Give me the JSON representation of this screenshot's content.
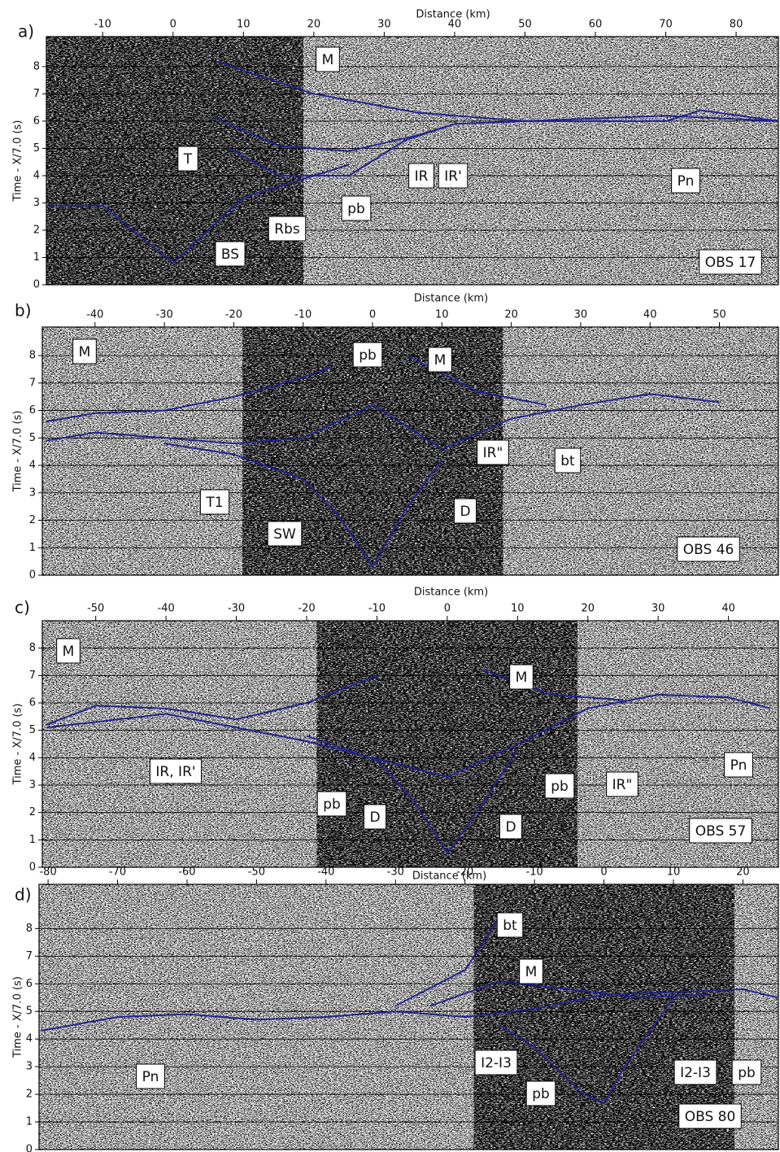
{
  "chart_data": [
    {
      "type": "seismic",
      "label": "a)",
      "x_label": "Distance (km)",
      "y_label": "Time - X/7.0 (s)",
      "xlim": [
        -18,
        86
      ],
      "xticks": [
        -10,
        0,
        10,
        20,
        30,
        40,
        50,
        60,
        70,
        80
      ],
      "ylim": [
        0,
        9.1
      ],
      "yticks": [
        0,
        1,
        2,
        3,
        4,
        5,
        6,
        7,
        8
      ],
      "grid": true,
      "line_color": "#23238c",
      "picks": [
        {
          "x": [
            6,
            20,
            35,
            50,
            70,
            86
          ],
          "values": [
            8.2,
            7.0,
            6.3,
            6.0,
            6.2,
            6.0
          ]
        },
        {
          "x": [
            6,
            15,
            25,
            35,
            40
          ],
          "values": [
            6.1,
            5.1,
            4.9,
            5.5,
            5.9
          ]
        },
        {
          "x": [
            -18,
            -10,
            0,
            10,
            20,
            25
          ],
          "values": [
            2.9,
            2.9,
            0.8,
            3.2,
            4.0,
            4.4
          ]
        },
        {
          "x": [
            8,
            15,
            25,
            33,
            40,
            50,
            60,
            70,
            75,
            86
          ],
          "values": [
            5,
            4.0,
            4.0,
            5.3,
            5.9,
            6.0,
            6.0,
            6.0,
            6.4,
            6.0
          ]
        }
      ],
      "annotations": [
        "M",
        "T",
        "pb",
        "Rbs",
        "BS",
        "IR",
        "IR'",
        "Pn",
        "OBS 17"
      ]
    },
    {
      "type": "seismic",
      "label": "b)",
      "x_label": "Distance (km)",
      "y_label": "Time - X/7.0 (s)",
      "xlim": [
        -47.6,
        58.5
      ],
      "xticks": [
        -40,
        -30,
        -20,
        -10,
        0,
        10,
        20,
        30,
        40,
        50
      ],
      "ylim": [
        0,
        9.04
      ],
      "yticks": [
        0,
        1,
        2,
        3,
        4,
        5,
        6,
        7,
        8
      ],
      "grid": true,
      "line_color": "#23238c",
      "picks": [
        {
          "x": [
            -47,
            -40,
            -30,
            -20,
            -10,
            -6
          ],
          "values": [
            5.6,
            5.9,
            6.0,
            6.5,
            7.2,
            7.6
          ]
        },
        {
          "x": [
            -47,
            -40,
            -30,
            -20,
            -10,
            0,
            10,
            20,
            30,
            40,
            50
          ],
          "values": [
            4.9,
            5.2,
            5.0,
            4.8,
            5.0,
            6.2,
            4.6,
            5.7,
            6.2,
            6.6,
            6.3
          ]
        },
        {
          "x": [
            -30,
            -20,
            -10,
            -5,
            0,
            5,
            10
          ],
          "values": [
            4.8,
            4.4,
            3.5,
            2.2,
            0.3,
            2.5,
            4.2
          ]
        },
        {
          "x": [
            5,
            15,
            25
          ],
          "values": [
            8.0,
            6.7,
            6.2
          ]
        }
      ],
      "annotations": [
        "M",
        "pb",
        "M",
        "bt",
        "IR\"",
        "T1",
        "SW",
        "D",
        "OBS 46"
      ]
    },
    {
      "type": "seismic",
      "label": "c)",
      "x_label": "Distance (km)",
      "y_label": "Time - X/7.0 (s)",
      "xlim": [
        -57.6,
        47.1
      ],
      "xticks": [
        -50,
        -40,
        -30,
        -20,
        -10,
        0,
        10,
        20,
        30,
        40
      ],
      "ylim": [
        0,
        9.0
      ],
      "yticks": [
        0,
        1,
        2,
        3,
        4,
        5,
        6,
        7,
        8
      ],
      "grid": true,
      "line_color": "#23238c",
      "picks": [
        {
          "x": [
            -57,
            -50,
            -40,
            -30,
            -20,
            -10
          ],
          "values": [
            5.2,
            5.9,
            5.8,
            5.4,
            6.0,
            7.0
          ]
        },
        {
          "x": [
            -57,
            -40,
            -20,
            0,
            10,
            20,
            30,
            40,
            46
          ],
          "values": [
            5.1,
            5.6,
            4.6,
            3.3,
            4.5,
            5.8,
            6.3,
            6.2,
            5.8
          ]
        },
        {
          "x": [
            -20,
            -10,
            -5,
            0,
            5,
            10
          ],
          "values": [
            4.8,
            3.9,
            2.5,
            0.5,
            2.3,
            4.3
          ]
        },
        {
          "x": [
            5,
            15,
            25
          ],
          "values": [
            7.2,
            6.3,
            6.1
          ]
        }
      ],
      "annotations": [
        "M",
        "M",
        "IR, IR'",
        "pb",
        "D",
        "pb",
        "IR\"",
        "Pn",
        "D",
        "OBS 57"
      ]
    },
    {
      "type": "seismic",
      "label": "d)",
      "x_label": "Distance (km)",
      "y_label": "Time - X/7.0 (s)",
      "xlim": [
        -81.3,
        25.1
      ],
      "xticks": [
        -80,
        -70,
        -60,
        -50,
        -40,
        -30,
        -20,
        -10,
        0,
        10,
        20
      ],
      "ylim": [
        0,
        9.6
      ],
      "yticks": [
        0,
        1,
        2,
        3,
        4,
        5,
        6,
        7,
        8
      ],
      "grid": true,
      "line_color": "#23238c",
      "picks": [
        {
          "x": [
            -81,
            -70,
            -60,
            -50,
            -40,
            -30,
            -20,
            -10,
            0,
            10,
            20,
            25
          ],
          "values": [
            4.3,
            4.8,
            4.9,
            4.7,
            4.8,
            5.0,
            4.8,
            5.1,
            5.6,
            5.7,
            5.8,
            5.5
          ]
        },
        {
          "x": [
            -30,
            -20,
            -15
          ],
          "values": [
            5.2,
            6.5,
            8.4
          ]
        },
        {
          "x": [
            -25,
            -15,
            -5,
            5,
            15
          ],
          "values": [
            5.2,
            6.1,
            5.8,
            5.5,
            5.6
          ]
        },
        {
          "x": [
            -15,
            -10,
            -3,
            0,
            3,
            10
          ],
          "values": [
            4.5,
            3.7,
            2.0,
            1.7,
            3.0,
            5.5
          ]
        }
      ],
      "annotations": [
        "bt",
        "M",
        "Pn",
        "I2-I3",
        "pb",
        "I2-I3",
        "pb",
        "OBS 80"
      ]
    }
  ]
}
